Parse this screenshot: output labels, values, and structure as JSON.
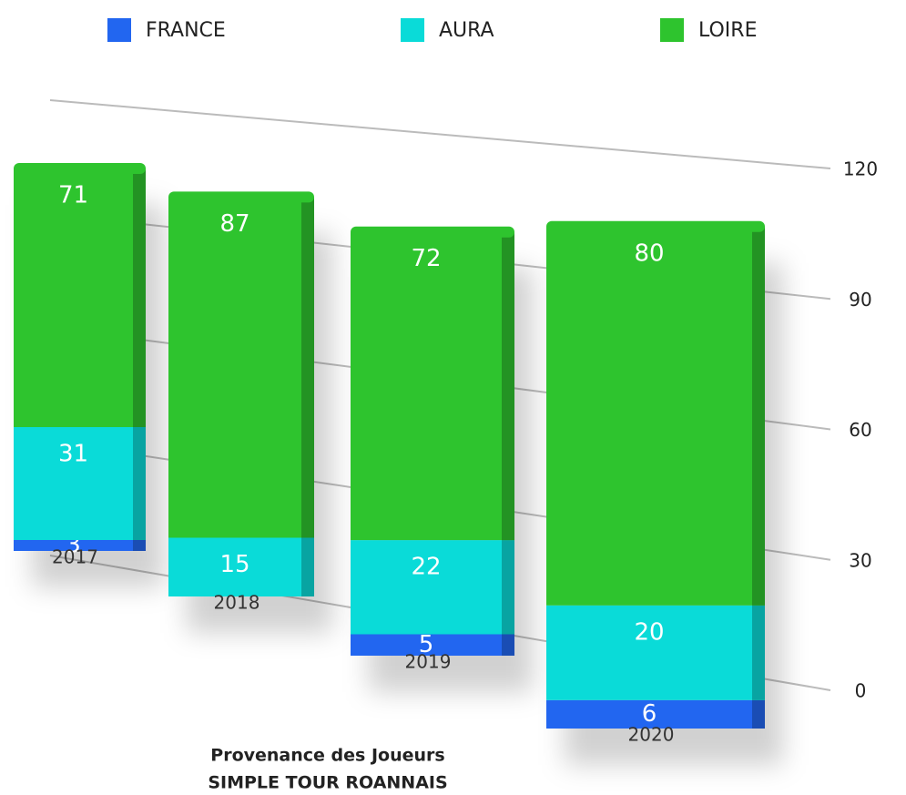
{
  "chart_data": {
    "type": "bar",
    "stacked": true,
    "title": "Provenance des Joueurs",
    "subtitle": "SIMPLE TOUR ROANNAIS",
    "categories": [
      "2017",
      "2018",
      "2019",
      "2020"
    ],
    "series": [
      {
        "name": "FRANCE",
        "color": "#2266f0",
        "values": [
          3,
          0,
          5,
          6
        ]
      },
      {
        "name": "AURA",
        "color": "#0adbd8",
        "values": [
          31,
          15,
          22,
          20
        ]
      },
      {
        "name": "LOIRE",
        "color": "#2ec42e",
        "values": [
          71,
          87,
          72,
          80
        ]
      }
    ],
    "ylim": [
      0,
      120
    ],
    "yticks": [
      0,
      30,
      60,
      90,
      120
    ],
    "grid": true,
    "legend": "top"
  }
}
